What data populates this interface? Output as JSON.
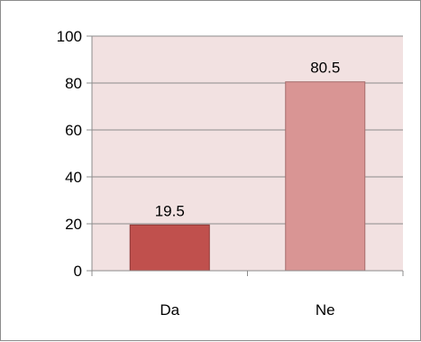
{
  "chart_data": {
    "type": "bar",
    "categories": [
      "Da",
      "Ne"
    ],
    "values": [
      19.5,
      80.5
    ],
    "data_labels": [
      "19.5",
      "80.5"
    ],
    "title": "",
    "xlabel": "",
    "ylabel": "",
    "ylim": [
      0,
      100
    ],
    "yticks": [
      0,
      20,
      40,
      60,
      80,
      100
    ],
    "ytick_labels": [
      "0",
      "20",
      "40",
      "60",
      "80",
      "100"
    ],
    "grid": true,
    "legend": "none",
    "colors": {
      "plot_background": "#f2e1e1",
      "gridline": "#8c8c8c",
      "bar_fills": [
        "#c0504d",
        "#d99594"
      ],
      "bar_edges": [
        "#8c3836",
        "#a66d6c"
      ]
    }
  }
}
